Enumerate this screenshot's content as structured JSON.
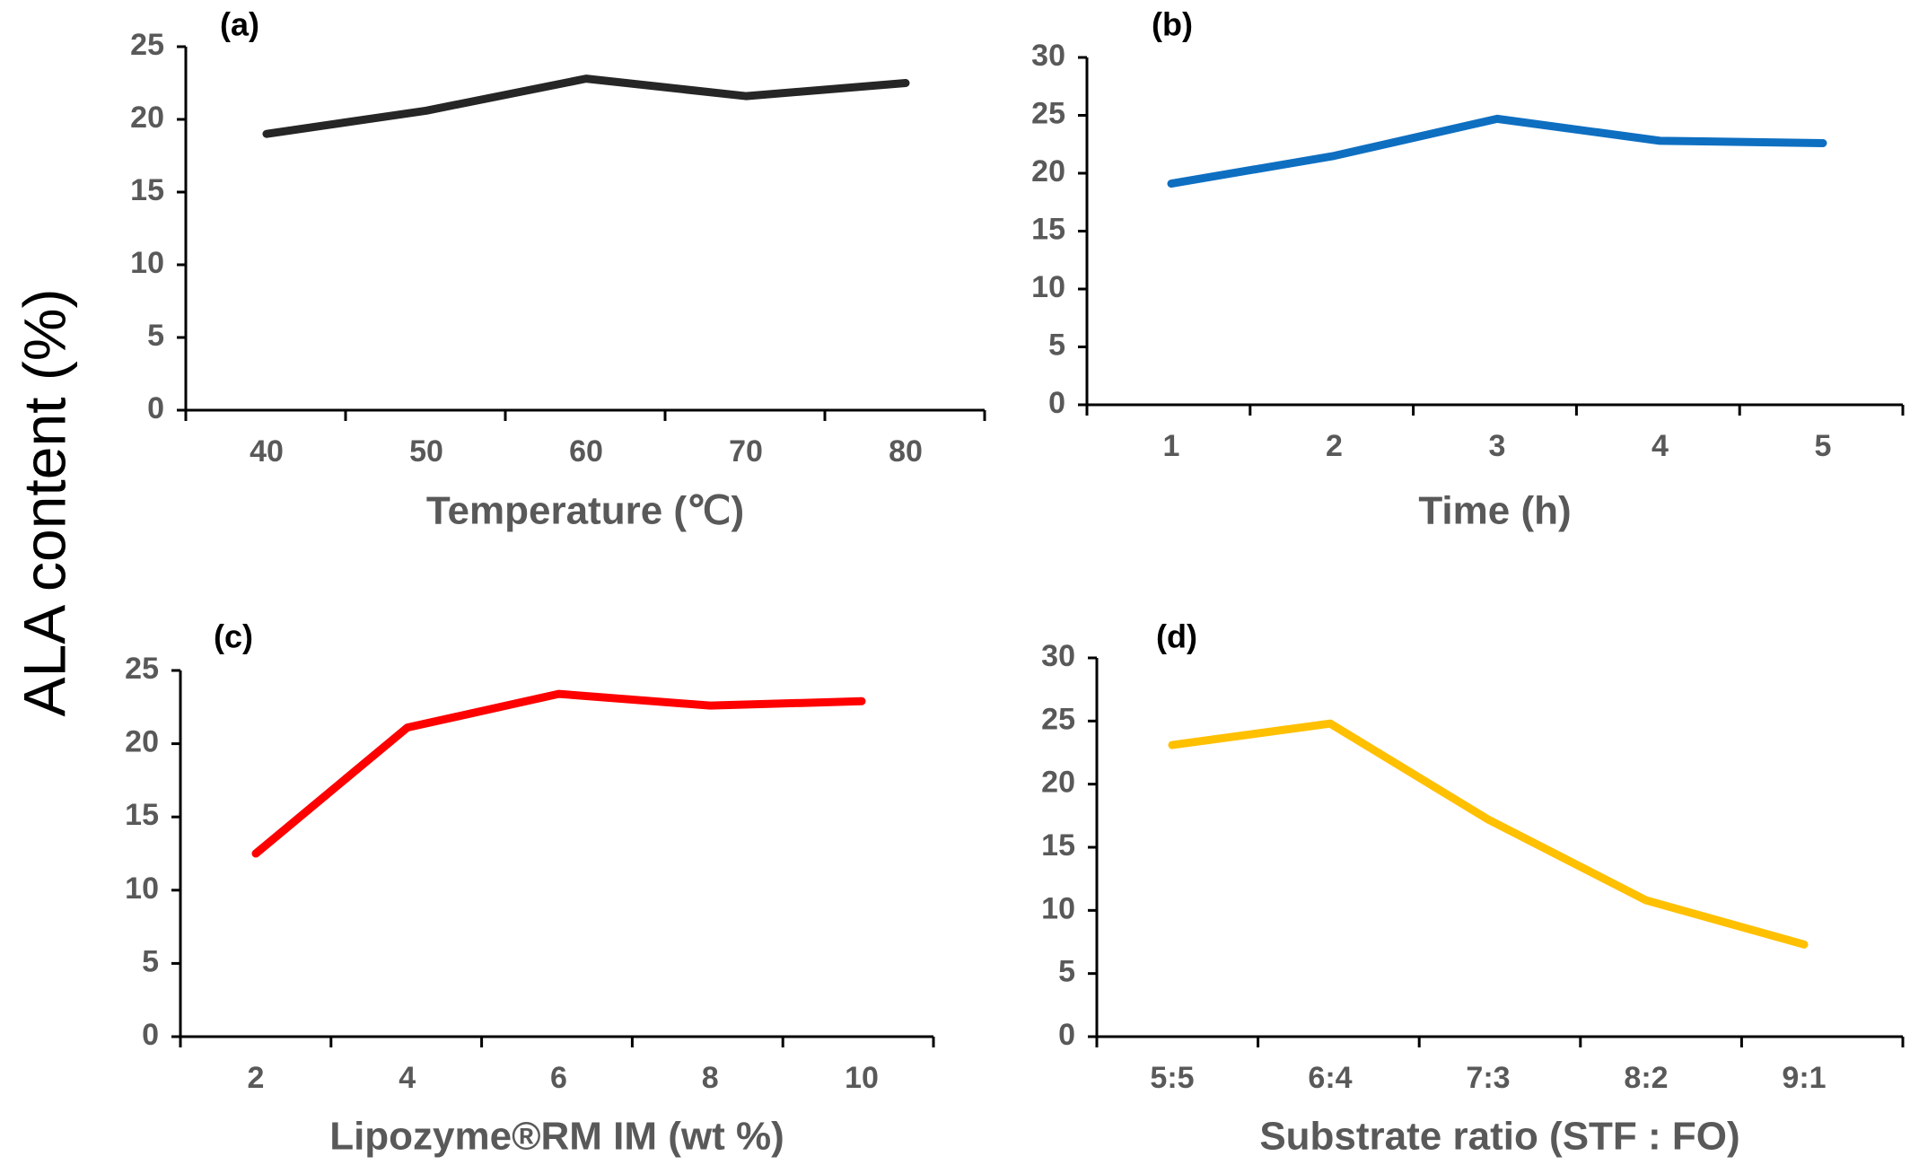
{
  "figure": {
    "shared_ylabel": "ALA content (%)"
  },
  "chart_data": [
    {
      "type": "line",
      "panel_label": "(a)",
      "xlabel": "Temperature (℃)",
      "ylabel": "ALA content (%)",
      "categories": [
        "40",
        "50",
        "60",
        "70",
        "80"
      ],
      "series": [
        {
          "values": [
            19.0,
            20.6,
            22.8,
            21.6,
            22.5
          ],
          "color": "#262626"
        }
      ],
      "ylim": [
        0,
        25
      ],
      "yticks": [
        0,
        5,
        10,
        15,
        20,
        25
      ]
    },
    {
      "type": "line",
      "panel_label": "(b)",
      "xlabel": "Time (h)",
      "ylabel": "ALA content (%)",
      "categories": [
        "1",
        "2",
        "3",
        "4",
        "5"
      ],
      "series": [
        {
          "values": [
            19.1,
            21.5,
            24.7,
            22.8,
            22.6
          ],
          "color": "#0e6fc1"
        }
      ],
      "ylim": [
        0,
        30
      ],
      "yticks": [
        0,
        5,
        10,
        15,
        20,
        25,
        30
      ]
    },
    {
      "type": "line",
      "panel_label": "(c)",
      "xlabel": "Lipozyme®RM IM (wt %)",
      "ylabel": "ALA content (%)",
      "categories": [
        "2",
        "4",
        "6",
        "8",
        "10"
      ],
      "series": [
        {
          "values": [
            12.5,
            21.1,
            23.4,
            22.6,
            22.9
          ],
          "color": "#fe0000"
        }
      ],
      "ylim": [
        0,
        25
      ],
      "yticks": [
        0,
        5,
        10,
        15,
        20,
        25
      ]
    },
    {
      "type": "line",
      "panel_label": "(d)",
      "xlabel": "Substrate ratio (STF : FO)",
      "ylabel": "ALA content (%)",
      "categories": [
        "5:5",
        "6:4",
        "7:3",
        "8:2",
        "9:1"
      ],
      "series": [
        {
          "values": [
            23.1,
            24.8,
            17.2,
            10.8,
            7.3
          ],
          "color": "#ffc000"
        }
      ],
      "ylim": [
        0,
        30
      ],
      "yticks": [
        0,
        5,
        10,
        15,
        20,
        25,
        30
      ]
    }
  ]
}
